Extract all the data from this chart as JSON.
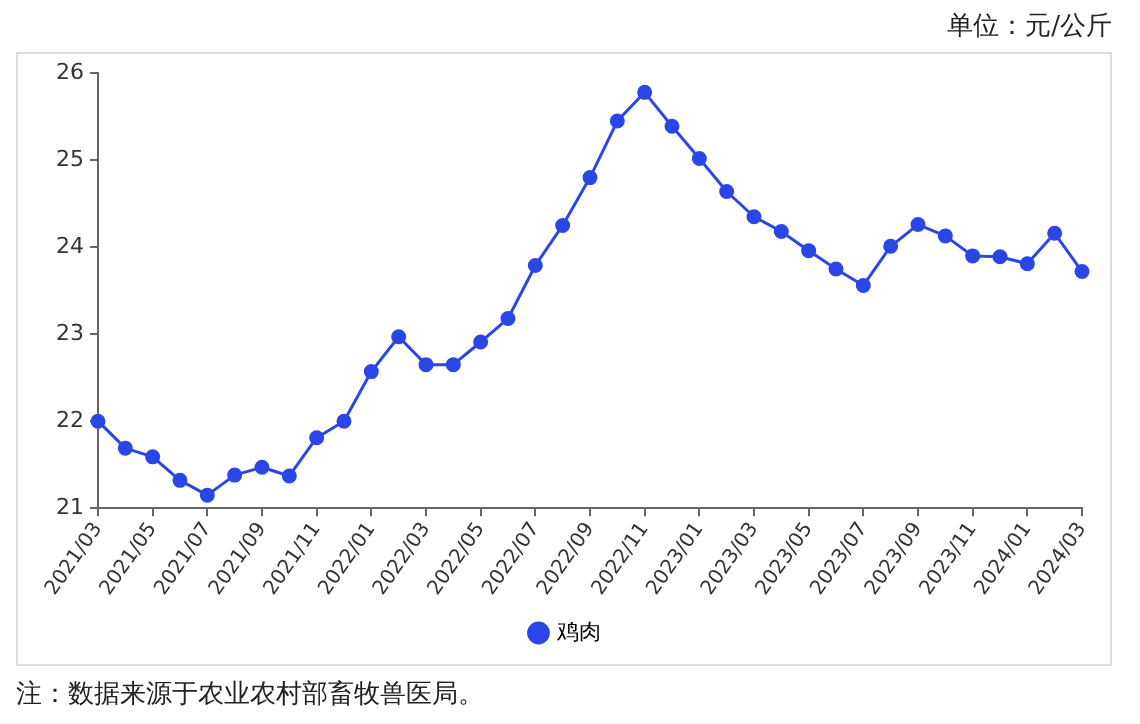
{
  "chart_data": {
    "type": "line",
    "annotations": [
      "单位：元/公斤",
      "注：数据来源于农业农村部畜牧兽医局。"
    ],
    "categories": [
      "2021/03",
      null,
      "2021/05",
      null,
      "2021/07",
      null,
      "2021/09",
      null,
      "2021/11",
      null,
      "2022/01",
      null,
      "2022/03",
      null,
      "2022/05",
      null,
      "2022/07",
      null,
      "2022/09",
      null,
      "2022/11",
      null,
      "2023/01",
      null,
      "2023/03",
      null,
      "2023/05",
      null,
      "2023/07",
      null,
      "2023/09",
      null,
      "2023/11",
      null,
      "2024/01",
      null,
      "2024/03"
    ],
    "series": [
      {
        "name": "鸡肉",
        "color": "#2b46e6",
        "values": [
          22.0,
          21.69,
          21.59,
          21.32,
          21.15,
          21.38,
          21.47,
          21.37,
          21.81,
          22.0,
          22.57,
          22.97,
          22.65,
          22.65,
          22.91,
          23.18,
          23.79,
          24.25,
          24.8,
          25.45,
          25.78,
          25.39,
          25.02,
          24.64,
          24.35,
          24.18,
          23.96,
          23.75,
          23.56,
          24.01,
          24.26,
          24.13,
          23.9,
          23.89,
          23.81,
          24.16,
          23.72
        ]
      }
    ],
    "ylim": [
      21,
      26
    ],
    "yticks": [
      21,
      22,
      23,
      24,
      25,
      26
    ],
    "grid": false,
    "legend": "bottom",
    "marker": "circle",
    "line_style": "solid"
  }
}
